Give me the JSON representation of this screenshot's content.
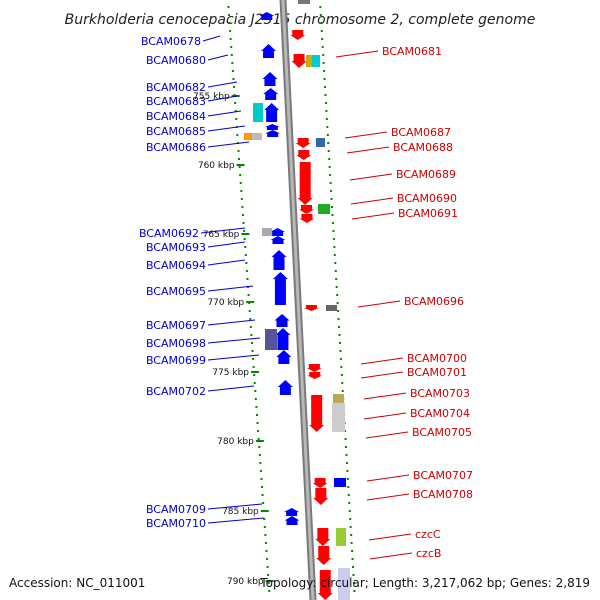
{
  "title": "Burkholderia cenocepacia J2315 chromosome 2, complete genome",
  "footer": {
    "accession": "Accession: NC_011001",
    "summary": "Topology: circular; Length: 3,217,062 bp; Genes: 2,819"
  },
  "kbp_ticks": [
    "755 kbp",
    "760 kbp",
    "765 kbp",
    "770 kbp",
    "775 kbp",
    "780 kbp",
    "785 kbp",
    "790 kbp"
  ],
  "forward_labels": [
    "BCAM0678",
    "BCAM0680",
    "BCAM0682",
    "BCAM0683",
    "BCAM0684",
    "BCAM0685",
    "BCAM0686",
    "BCAM0692",
    "BCAM0693",
    "BCAM0694",
    "BCAM0695",
    "BCAM0697",
    "BCAM0698",
    "BCAM0699",
    "BCAM0702",
    "BCAM0709",
    "BCAM0710"
  ],
  "reverse_labels": [
    "BCAM0681",
    "BCAM0687",
    "BCAM0688",
    "BCAM0689",
    "BCAM0690",
    "BCAM0691",
    "BCAM0696",
    "BCAM0700",
    "BCAM0701",
    "BCAM0703",
    "BCAM0704",
    "BCAM0705",
    "BCAM0707",
    "BCAM0708",
    "czcC",
    "czcB"
  ],
  "colors": {
    "forward_gene": "#0000ff",
    "reverse_gene": "#ff0000",
    "forward_label": "#0000cc",
    "reverse_label": "#cc0000",
    "backbone": "#999999",
    "tick_dots": "#008800"
  }
}
